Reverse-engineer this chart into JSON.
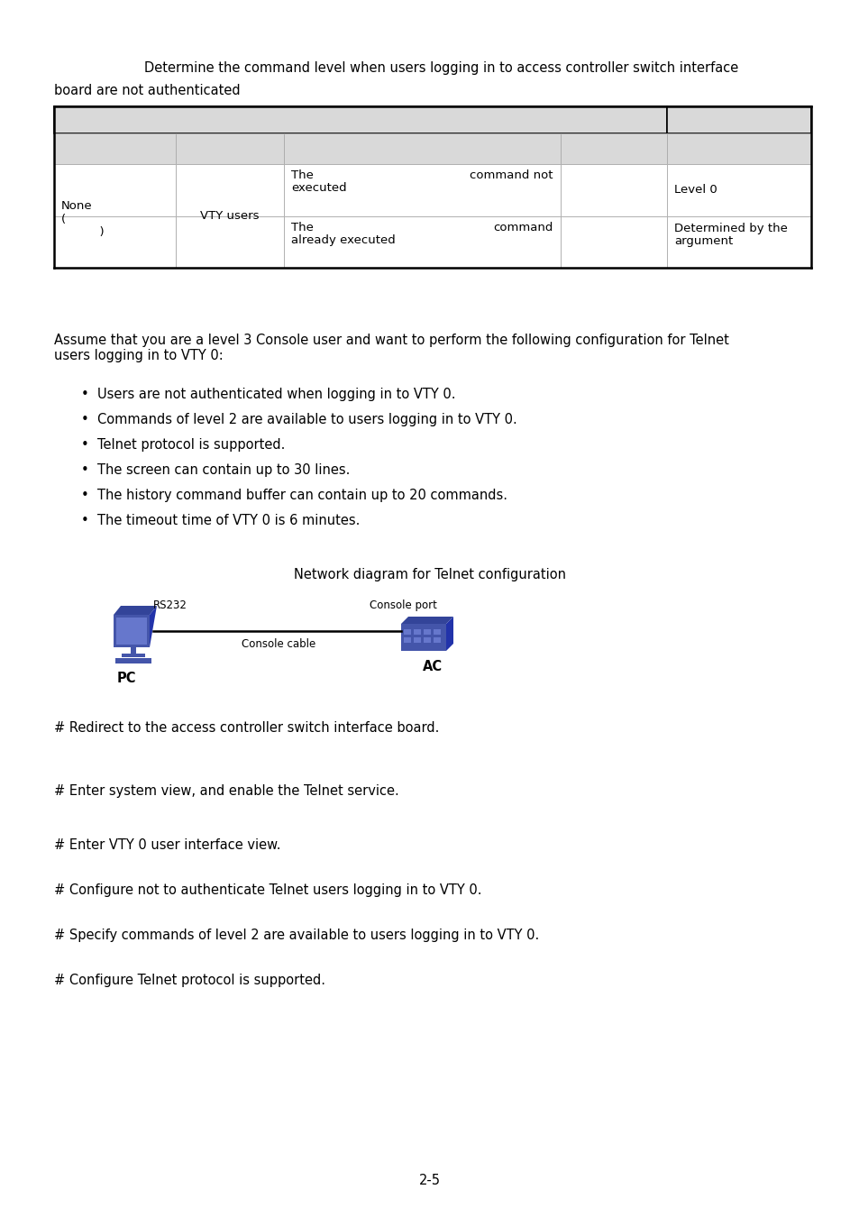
{
  "bg_color": "#ffffff",
  "title_line1": "            Determine the command level when users logging in to access controller switch interface",
  "title_line2": "board are not authenticated",
  "table": {
    "header_bg": "#d9d9d9",
    "cell_bg": "#d9d9d9",
    "col0_text": "None\n(\n          )",
    "col1_text": "VTY users",
    "row1_col2a": "The",
    "row1_col2b": "executed",
    "row1_col3": "command not",
    "row1_col4": "Level 0",
    "row2_col2a": "The",
    "row2_col2b": "already executed",
    "row2_col3": "command",
    "row2_col4": "Determined by the\nargument"
  },
  "intro_text": "Assume that you are a level 3 Console user and want to perform the following configuration for Telnet\nusers logging in to VTY 0:",
  "bullets": [
    "Users are not authenticated when logging in to VTY 0.",
    "Commands of level 2 are available to users logging in to VTY 0.",
    "Telnet protocol is supported.",
    "The screen can contain up to 30 lines.",
    "The history command buffer can contain up to 20 commands.",
    "The timeout time of VTY 0 is 6 minutes."
  ],
  "diagram_title": "Network diagram for Telnet configuration",
  "pc_label": "PC",
  "ac_label": "AC",
  "rs232_label": "RS232",
  "console_port_label": "Console port",
  "console_cable_label": "Console cable",
  "steps": [
    "# Redirect to the access controller switch interface board.",
    "# Enter system view, and enable the Telnet service.",
    "# Enter VTY 0 user interface view.",
    "# Configure not to authenticate Telnet users logging in to VTY 0.",
    "# Specify commands of level 2 are available to users logging in to VTY 0.",
    "# Configure Telnet protocol is supported."
  ],
  "page_num": "2-5",
  "device_color_main": "#4455aa",
  "device_color_light": "#6677cc",
  "device_color_dark": "#2233880"
}
